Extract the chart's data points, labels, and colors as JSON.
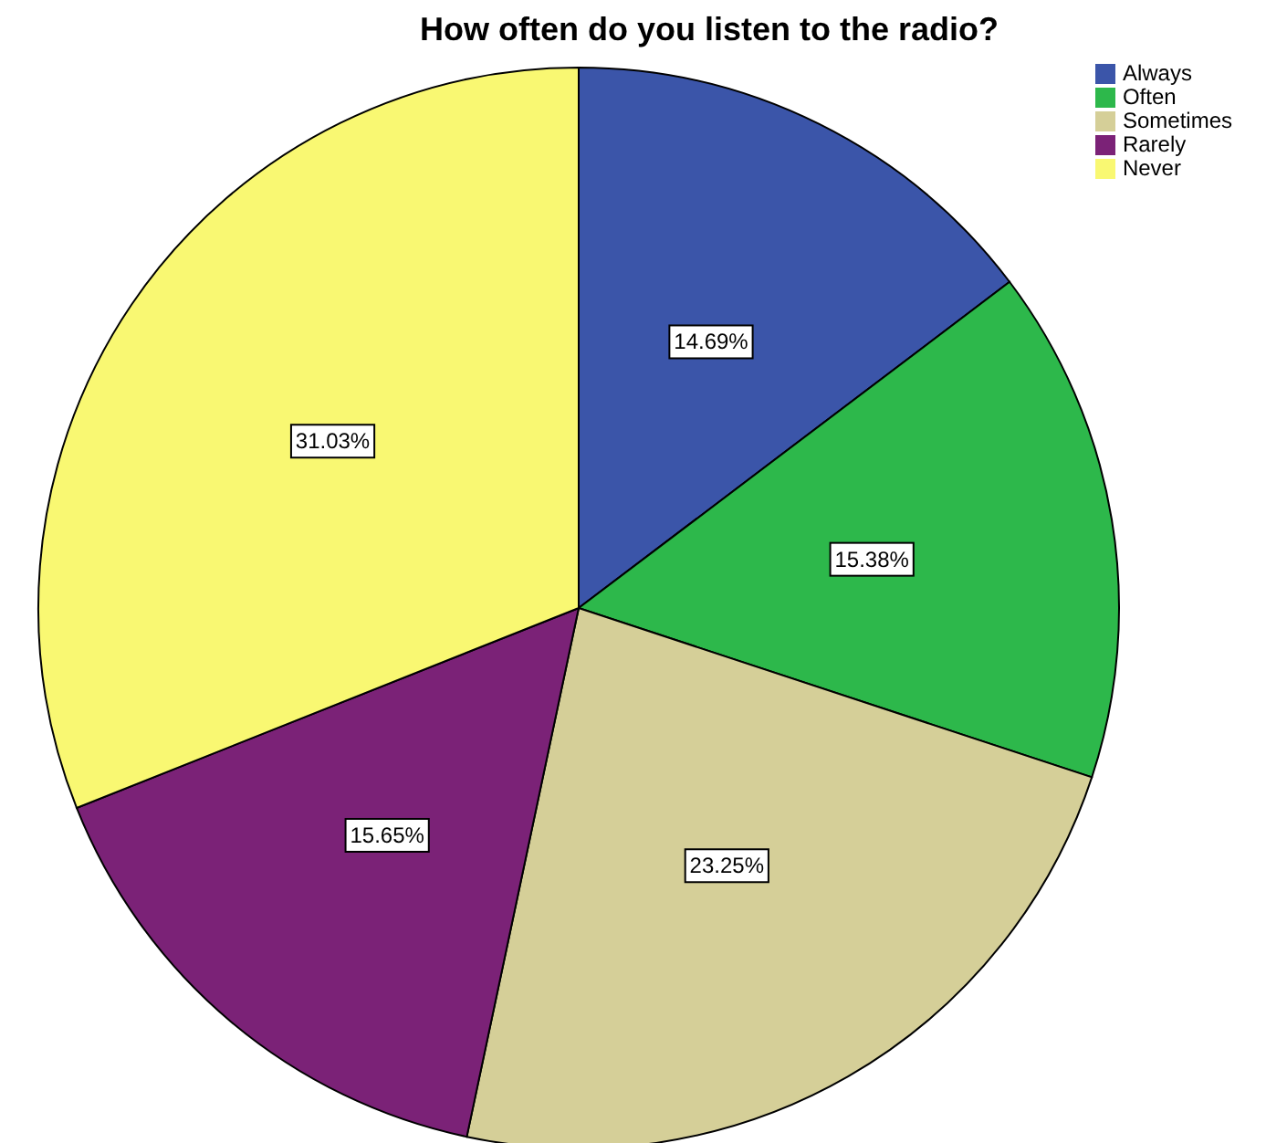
{
  "chart_data": {
    "type": "pie",
    "title": "How often do you listen to the radio?",
    "categories": [
      "Always",
      "Often",
      "Sometimes",
      "Rarely",
      "Never"
    ],
    "values": [
      14.69,
      15.38,
      23.25,
      15.65,
      31.03
    ],
    "value_labels": [
      "14.69%",
      "15.38%",
      "23.25%",
      "15.65%",
      "31.03%"
    ],
    "colors": [
      "#3b55a9",
      "#2db84b",
      "#d5cf98",
      "#7b2277",
      "#f9f872"
    ],
    "legend": "top right"
  }
}
